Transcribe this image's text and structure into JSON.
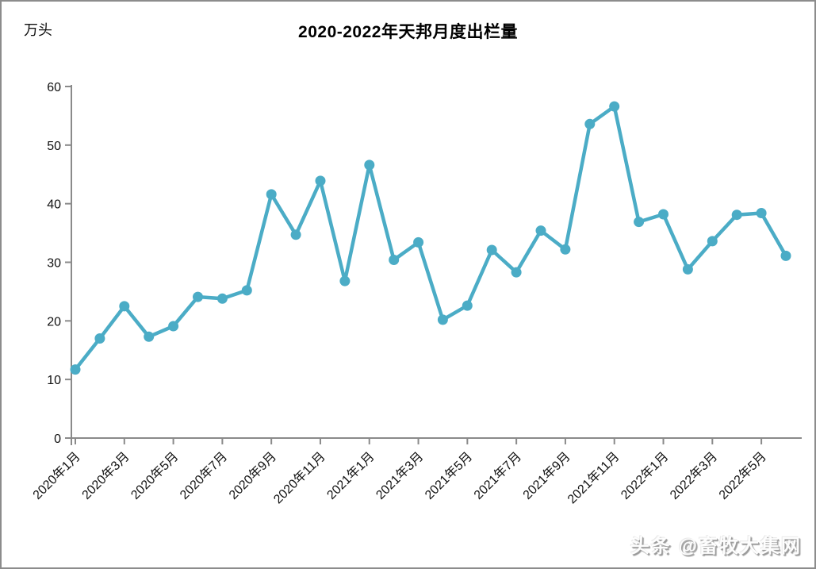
{
  "page": {
    "background_color": "#ffffff",
    "frame_border_color": "#8c8c8c"
  },
  "header": {
    "title": "2020-2022年天邦月度出栏量",
    "unit_label": "万头"
  },
  "watermark": {
    "text": "头条 @畜牧大集网"
  },
  "chart_data": {
    "type": "line",
    "title": "2020-2022年天邦月度出栏量",
    "xlabel": "",
    "ylabel": "万头",
    "ylim": [
      0,
      60
    ],
    "y_ticks": [
      0,
      10,
      20,
      30,
      40,
      50,
      60
    ],
    "grid": false,
    "legend_position": "none",
    "marker": "circle",
    "line_color": "#4BACC6",
    "axis_color": "#8a8a8a",
    "categories": [
      "2020年1月",
      "2020年2月",
      "2020年3月",
      "2020年4月",
      "2020年5月",
      "2020年6月",
      "2020年7月",
      "2020年8月",
      "2020年9月",
      "2020年10月",
      "2020年11月",
      "2020年12月",
      "2021年1月",
      "2021年2月",
      "2021年3月",
      "2021年4月",
      "2021年5月",
      "2021年6月",
      "2021年7月",
      "2021年8月",
      "2021年9月",
      "2021年10月",
      "2021年11月",
      "2021年12月",
      "2022年1月",
      "2022年2月",
      "2022年3月",
      "2022年4月",
      "2022年5月",
      "2022年6月"
    ],
    "values": [
      11.7,
      17.0,
      22.5,
      17.3,
      19.1,
      24.1,
      23.8,
      25.2,
      41.6,
      34.7,
      43.9,
      26.8,
      46.6,
      30.4,
      33.4,
      20.2,
      22.6,
      32.1,
      28.3,
      35.4,
      32.2,
      53.6,
      56.6,
      36.9,
      38.2,
      28.8,
      33.6,
      38.1,
      38.4,
      31.1
    ],
    "x_tick_labels": [
      "2020年1月",
      "2020年3月",
      "2020年5月",
      "2020年7月",
      "2020年9月",
      "2020年11月",
      "2021年1月",
      "2021年3月",
      "2021年5月",
      "2021年7月",
      "2021年9月",
      "2021年11月",
      "2022年1月",
      "2022年3月",
      "2022年5月"
    ],
    "x_tick_every": 2
  }
}
